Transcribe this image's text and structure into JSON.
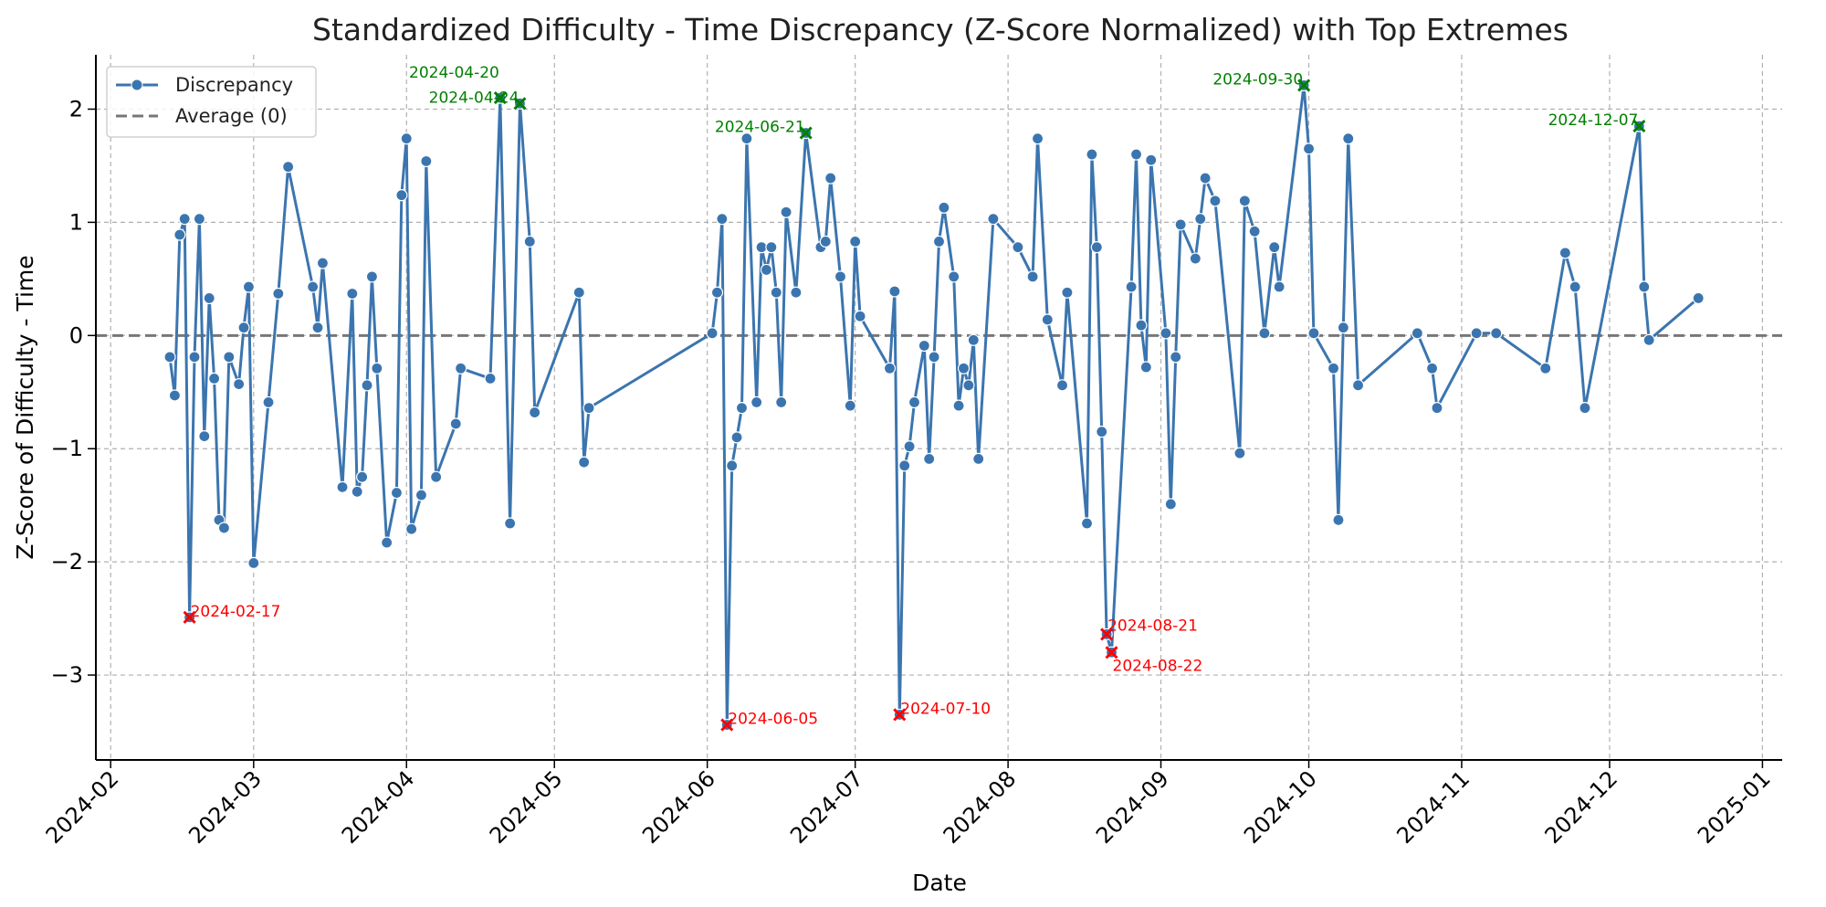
{
  "chart_data": {
    "type": "line",
    "title": "Standardized Difficulty - Time Discrepancy (Z-Score Normalized) with Top Extremes",
    "xlabel": "Date",
    "ylabel": "Z-Score of Difficulty - Time",
    "xlim": [
      "2024-01-29",
      "2025-01-05"
    ],
    "ylim": [
      -3.75,
      2.48
    ],
    "grid": true,
    "legend_position": "top-left",
    "x_ticks": [
      "2024-02",
      "2024-03",
      "2024-04",
      "2024-05",
      "2024-06",
      "2024-07",
      "2024-08",
      "2024-09",
      "2024-10",
      "2024-11",
      "2024-12",
      "2025-01"
    ],
    "y_ticks": [
      -3,
      -2,
      -1,
      0,
      1,
      2
    ],
    "y_tick_labels": [
      "−3",
      "−2",
      "−1",
      "0",
      "1",
      "2"
    ],
    "colors": {
      "series": "#3b75af",
      "average": "#777777",
      "low_extreme": "#ff0000",
      "high_extreme": "#008000"
    },
    "series": [
      {
        "name": "Discrepancy",
        "marker": "circle",
        "x": [
          "2024-02-13",
          "2024-02-14",
          "2024-02-15",
          "2024-02-16",
          "2024-02-17",
          "2024-02-18",
          "2024-02-19",
          "2024-02-20",
          "2024-02-21",
          "2024-02-22",
          "2024-02-23",
          "2024-02-24",
          "2024-02-25",
          "2024-02-27",
          "2024-02-28",
          "2024-02-29",
          "2024-03-01",
          "2024-03-04",
          "2024-03-06",
          "2024-03-08",
          "2024-03-13",
          "2024-03-14",
          "2024-03-15",
          "2024-03-19",
          "2024-03-21",
          "2024-03-22",
          "2024-03-23",
          "2024-03-24",
          "2024-03-25",
          "2024-03-26",
          "2024-03-28",
          "2024-03-30",
          "2024-03-31",
          "2024-04-01",
          "2024-04-02",
          "2024-04-04",
          "2024-04-05",
          "2024-04-07",
          "2024-04-11",
          "2024-04-12",
          "2024-04-18",
          "2024-04-20",
          "2024-04-22",
          "2024-04-24",
          "2024-04-26",
          "2024-04-27",
          "2024-05-06",
          "2024-05-07",
          "2024-05-08",
          "2024-06-02",
          "2024-06-03",
          "2024-06-04",
          "2024-06-05",
          "2024-06-06",
          "2024-06-07",
          "2024-06-08",
          "2024-06-09",
          "2024-06-11",
          "2024-06-12",
          "2024-06-13",
          "2024-06-14",
          "2024-06-15",
          "2024-06-16",
          "2024-06-17",
          "2024-06-19",
          "2024-06-21",
          "2024-06-24",
          "2024-06-25",
          "2024-06-26",
          "2024-06-28",
          "2024-06-30",
          "2024-07-01",
          "2024-07-02",
          "2024-07-08",
          "2024-07-09",
          "2024-07-10",
          "2024-07-11",
          "2024-07-12",
          "2024-07-13",
          "2024-07-15",
          "2024-07-16",
          "2024-07-17",
          "2024-07-18",
          "2024-07-19",
          "2024-07-21",
          "2024-07-22",
          "2024-07-23",
          "2024-07-24",
          "2024-07-25",
          "2024-07-26",
          "2024-07-29",
          "2024-08-03",
          "2024-08-06",
          "2024-08-07",
          "2024-08-09",
          "2024-08-12",
          "2024-08-13",
          "2024-08-17",
          "2024-08-18",
          "2024-08-19",
          "2024-08-20",
          "2024-08-21",
          "2024-08-22",
          "2024-08-26",
          "2024-08-27",
          "2024-08-28",
          "2024-08-29",
          "2024-08-30",
          "2024-09-02",
          "2024-09-03",
          "2024-09-04",
          "2024-09-05",
          "2024-09-08",
          "2024-09-09",
          "2024-09-10",
          "2024-09-12",
          "2024-09-17",
          "2024-09-18",
          "2024-09-20",
          "2024-09-22",
          "2024-09-24",
          "2024-09-25",
          "2024-09-30",
          "2024-10-01",
          "2024-10-02",
          "2024-10-06",
          "2024-10-07",
          "2024-10-08",
          "2024-10-09",
          "2024-10-11",
          "2024-10-23",
          "2024-10-26",
          "2024-10-27",
          "2024-11-04",
          "2024-11-08",
          "2024-11-18",
          "2024-11-22",
          "2024-11-24",
          "2024-11-26",
          "2024-12-07",
          "2024-12-08",
          "2024-12-09",
          "2024-12-19"
        ],
        "y": [
          -0.19,
          -0.53,
          0.89,
          1.03,
          -2.49,
          -0.19,
          1.03,
          -0.89,
          0.33,
          -0.38,
          -1.63,
          -1.7,
          -0.19,
          -0.43,
          0.07,
          0.43,
          -2.01,
          -0.59,
          0.37,
          1.49,
          0.43,
          0.07,
          0.64,
          -1.34,
          0.37,
          -1.38,
          -1.25,
          -0.44,
          0.52,
          -0.29,
          -1.83,
          -1.39,
          1.24,
          1.74,
          -1.71,
          -1.41,
          1.54,
          -1.25,
          -0.78,
          -0.29,
          -0.38,
          2.1,
          -1.66,
          2.05,
          0.83,
          -0.68,
          0.38,
          -1.12,
          -0.64,
          0.02,
          0.38,
          1.03,
          -3.44,
          -1.15,
          -0.9,
          -0.64,
          1.74,
          -0.59,
          0.78,
          0.58,
          0.78,
          0.38,
          -0.59,
          1.09,
          0.38,
          1.79,
          0.78,
          0.83,
          1.39,
          0.52,
          -0.62,
          0.83,
          0.17,
          -0.29,
          0.39,
          -3.35,
          -1.15,
          -0.98,
          -0.59,
          -0.09,
          -1.09,
          -0.19,
          0.83,
          1.13,
          0.52,
          -0.62,
          -0.29,
          -0.44,
          -0.04,
          -1.09,
          1.03,
          0.78,
          0.52,
          1.74,
          0.14,
          -0.44,
          0.38,
          -1.66,
          1.6,
          0.78,
          -0.85,
          -2.64,
          -2.8,
          0.43,
          1.6,
          0.09,
          -0.28,
          1.55,
          0.02,
          -1.49,
          -0.19,
          0.98,
          0.68,
          1.03,
          1.39,
          1.19,
          -1.04,
          1.19,
          0.92,
          0.02,
          0.78,
          0.43,
          2.21,
          1.65,
          0.02,
          -0.29,
          -1.63,
          0.07,
          1.74,
          -0.44,
          0.02,
          -0.29,
          -0.64,
          0.02,
          0.02,
          -0.29,
          0.73,
          0.43,
          -0.64,
          1.85,
          0.43,
          -0.04,
          0.33
        ]
      },
      {
        "name": "Average (0)",
        "style": "dashed",
        "value": 0
      }
    ],
    "low_extremes": [
      {
        "label": "2024-02-17",
        "x": "2024-02-17",
        "y": -2.49
      },
      {
        "label": "2024-06-05",
        "x": "2024-06-05",
        "y": -3.44
      },
      {
        "label": "2024-07-10",
        "x": "2024-07-10",
        "y": -3.35
      },
      {
        "label": "2024-08-21",
        "x": "2024-08-21",
        "y": -2.64
      },
      {
        "label": "2024-08-22",
        "x": "2024-08-22",
        "y": -2.8
      }
    ],
    "high_extremes": [
      {
        "label": "2024-04-20",
        "x": "2024-04-20",
        "y": 2.1
      },
      {
        "label": "2024-04-24",
        "x": "2024-04-24",
        "y": 2.05
      },
      {
        "label": "2024-06-21",
        "x": "2024-06-21",
        "y": 1.79
      },
      {
        "label": "2024-09-30",
        "x": "2024-09-30",
        "y": 2.21
      },
      {
        "label": "2024-12-07",
        "x": "2024-12-07",
        "y": 1.85
      }
    ]
  }
}
